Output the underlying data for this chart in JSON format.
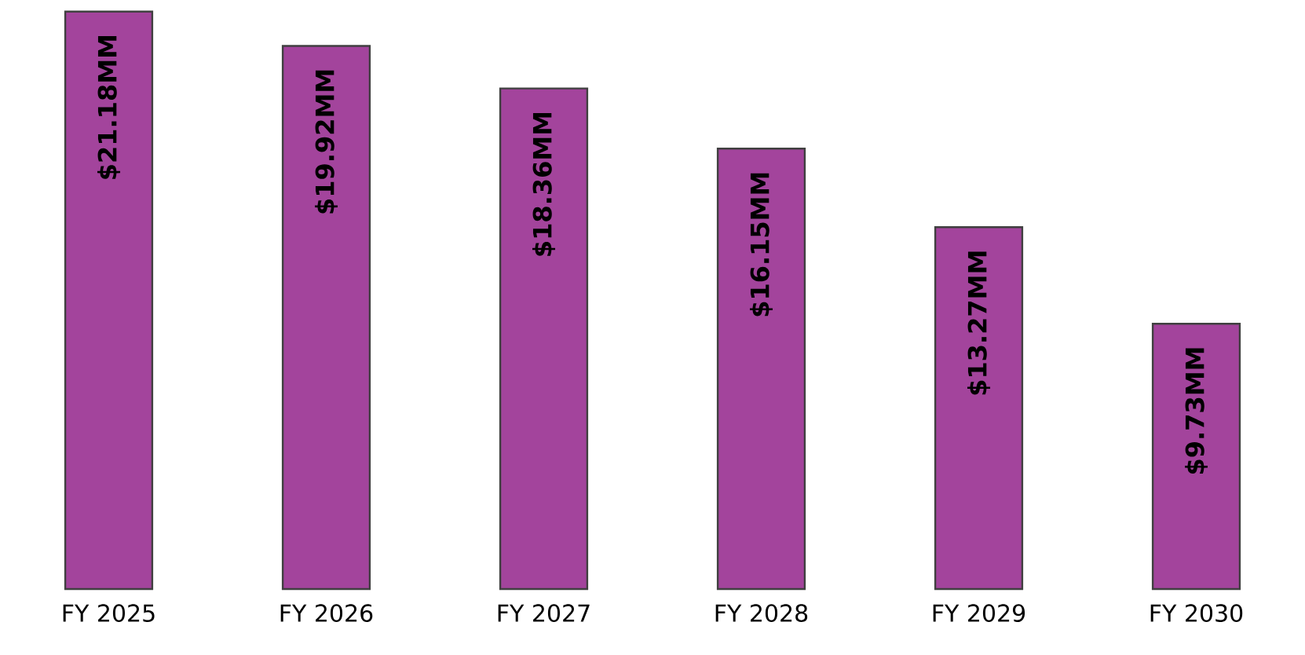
{
  "chart_data": {
    "type": "bar",
    "categories": [
      "FY 2025",
      "FY 2026",
      "FY 2027",
      "FY 2028",
      "FY 2029",
      "FY 2030"
    ],
    "values": [
      21.18,
      19.92,
      18.36,
      16.15,
      13.27,
      9.73
    ],
    "value_labels": [
      "$21.18MM",
      "$19.92MM",
      "$18.36MM",
      "$16.15MM",
      "$13.27MM",
      "$9.73MM"
    ],
    "color": "#a3449c"
  }
}
